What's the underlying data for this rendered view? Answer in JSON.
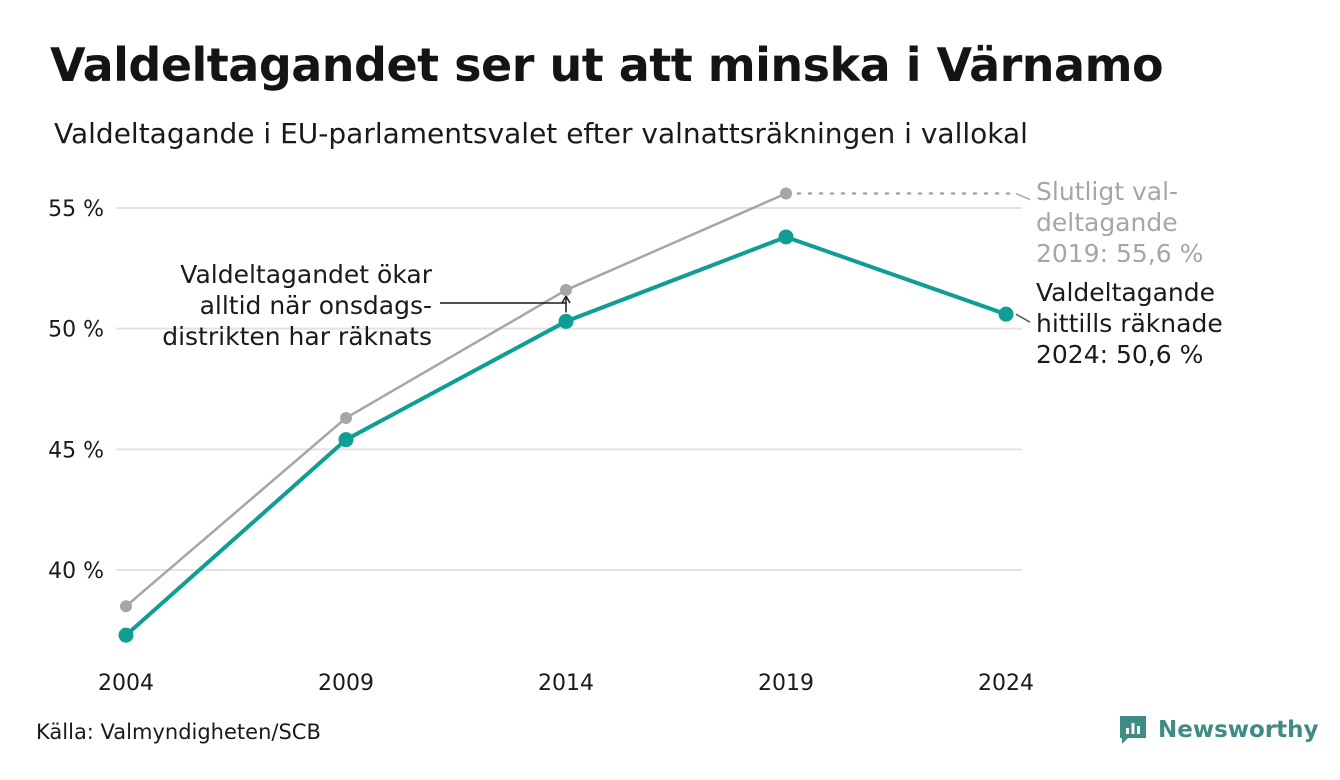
{
  "header": {
    "title": "Valdeltagandet ser ut att minska i Värnamo",
    "subtitle": "Valdeltagande i EU-parlamentsvalet efter valnattsräkningen i vallokal"
  },
  "footer": {
    "source": "Källa: Valmyndigheten/SCB",
    "brand": "Newsworthy"
  },
  "colors": {
    "accent": "#0f9e93",
    "final": "#a6a6a6",
    "grid": "#e3e3e3",
    "brand": "#3f8c86"
  },
  "chart_data": {
    "type": "line",
    "x": [
      2004,
      2009,
      2014,
      2019,
      2024
    ],
    "x_tick_labels": [
      "2004",
      "2009",
      "2014",
      "2019",
      "2024"
    ],
    "y_ticks": [
      40,
      45,
      50,
      55
    ],
    "y_tick_labels": [
      "40 %",
      "45 %",
      "50 %",
      "55 %"
    ],
    "ylim": [
      37,
      56
    ],
    "grid": true,
    "series": [
      {
        "key": "final",
        "x": [
          2004,
          2009,
          2014,
          2019
        ],
        "values": [
          38.5,
          46.3,
          51.6,
          55.6
        ]
      },
      {
        "key": "counted",
        "x": [
          2004,
          2009,
          2014,
          2019,
          2024
        ],
        "values": [
          37.3,
          45.4,
          50.3,
          53.8,
          50.6
        ]
      }
    ],
    "annotations": {
      "final_2019": [
        "Slutligt val-",
        "deltagande",
        "2019: 55,6 %"
      ],
      "counted_2024": [
        "Valdeltagande",
        "hittills räknade",
        "2024: 50,6 %"
      ],
      "wednesday": [
        "Valdeltagandet ökar",
        "alltid när onsdags-",
        "distrikten har räknats"
      ]
    }
  }
}
